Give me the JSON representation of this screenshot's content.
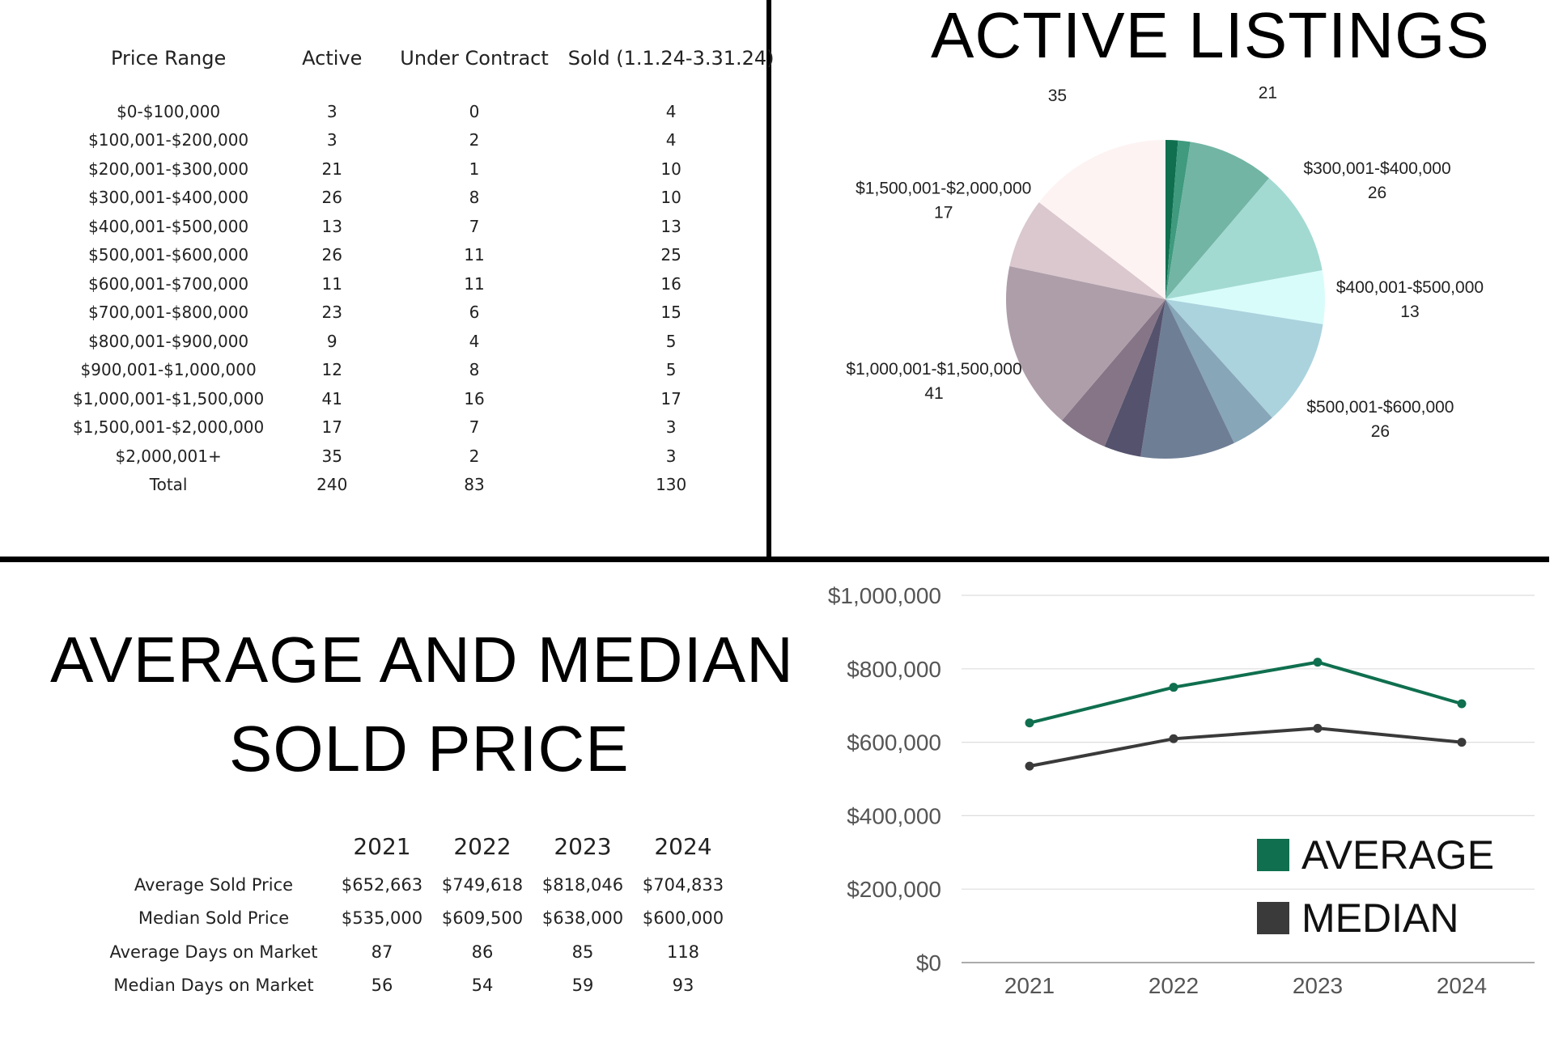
{
  "listings_table": {
    "headers": [
      "Price Range",
      "Active",
      "Under Contract",
      "Sold (1.1.24-3.31.24)"
    ],
    "rows": [
      [
        "$0-$100,000",
        "3",
        "0",
        "4"
      ],
      [
        "$100,001-$200,000",
        "3",
        "2",
        "4"
      ],
      [
        "$200,001-$300,000",
        "21",
        "1",
        "10"
      ],
      [
        "$300,001-$400,000",
        "26",
        "8",
        "10"
      ],
      [
        "$400,001-$500,000",
        "13",
        "7",
        "13"
      ],
      [
        "$500,001-$600,000",
        "26",
        "11",
        "25"
      ],
      [
        "$600,001-$700,000",
        "11",
        "11",
        "16"
      ],
      [
        "$700,001-$800,000",
        "23",
        "6",
        "15"
      ],
      [
        "$800,001-$900,000",
        "9",
        "4",
        "5"
      ],
      [
        "$900,001-$1,000,000",
        "12",
        "8",
        "5"
      ],
      [
        "$1,000,001-$1,500,000",
        "41",
        "16",
        "17"
      ],
      [
        "$1,500,001-$2,000,000",
        "17",
        "7",
        "3"
      ],
      [
        "$2,000,001+",
        "35",
        "2",
        "3"
      ],
      [
        "Total",
        "240",
        "83",
        "130"
      ]
    ]
  },
  "active_listings_title": "ACTIVE LISTINGS",
  "sold_price_title_line1": "AVERAGE AND MEDIAN",
  "sold_price_title_line2": "SOLD PRICE",
  "sold_price_table": {
    "years": [
      "2021",
      "2022",
      "2023",
      "2024"
    ],
    "rows": [
      {
        "label": "Average Sold Price",
        "values": [
          "$652,663",
          "$749,618",
          "$818,046",
          "$704,833"
        ]
      },
      {
        "label": "Median Sold Price",
        "values": [
          "$535,000",
          "$609,500",
          "$638,000",
          "$600,000"
        ]
      },
      {
        "label": "Average Days on Market",
        "values": [
          "87",
          "86",
          "85",
          "118"
        ]
      },
      {
        "label": "Median Days on Market",
        "values": [
          "56",
          "54",
          "59",
          "93"
        ]
      }
    ]
  },
  "chart_data": [
    {
      "type": "pie",
      "title": "ACTIVE LISTINGS",
      "slices": [
        {
          "label": "$0-$100,000",
          "value": 3,
          "color": "#0f6f4f",
          "show_label": false
        },
        {
          "label": "$100,001-$200,000",
          "value": 3,
          "color": "#3f9a7e",
          "show_label": false
        },
        {
          "label": "$200,001-$300,000",
          "value": 21,
          "color": "#72b5a4",
          "show_label": true
        },
        {
          "label": "$300,001-$400,000",
          "value": 26,
          "color": "#a2dad2",
          "show_label": true
        },
        {
          "label": "$400,001-$500,000",
          "value": 13,
          "color": "#d8fcfa",
          "show_label": true
        },
        {
          "label": "$500,001-$600,000",
          "value": 26,
          "color": "#abd3de",
          "show_label": true
        },
        {
          "label": "$600,001-$700,000",
          "value": 11,
          "color": "#87a6b8",
          "show_label": false
        },
        {
          "label": "$700,001-$800,000",
          "value": 23,
          "color": "#6e7e95",
          "show_label": true
        },
        {
          "label": "$800,001-$900,000",
          "value": 9,
          "color": "#55526d",
          "show_label": false
        },
        {
          "label": "$900,001-$1,000,000",
          "value": 12,
          "color": "#857587",
          "show_label": false
        },
        {
          "label": "$1,000,001-$1,500,000",
          "value": 41,
          "color": "#ae9ea9",
          "show_label": true
        },
        {
          "label": "$1,500,001-$2,000,000",
          "value": 17,
          "color": "#dac8ce",
          "show_label": true
        },
        {
          "label": "$2,000,001+",
          "value": 35,
          "color": "#fdf3f3",
          "show_label": true
        }
      ]
    },
    {
      "type": "line",
      "x": [
        "2021",
        "2022",
        "2023",
        "2024"
      ],
      "ylim": [
        0,
        1000000
      ],
      "y_ticks": [
        "$0",
        "$200,000",
        "$400,000",
        "$600,000",
        "$800,000",
        "$1,000,000"
      ],
      "grid": true,
      "legend_position": "bottom-right",
      "series": [
        {
          "name": "AVERAGE",
          "values": [
            652663,
            749618,
            818046,
            704833
          ],
          "color": "#0f6f4f"
        },
        {
          "name": "MEDIAN",
          "values": [
            535000,
            609500,
            638000,
            600000
          ],
          "color": "#3a3a3a"
        }
      ]
    }
  ]
}
